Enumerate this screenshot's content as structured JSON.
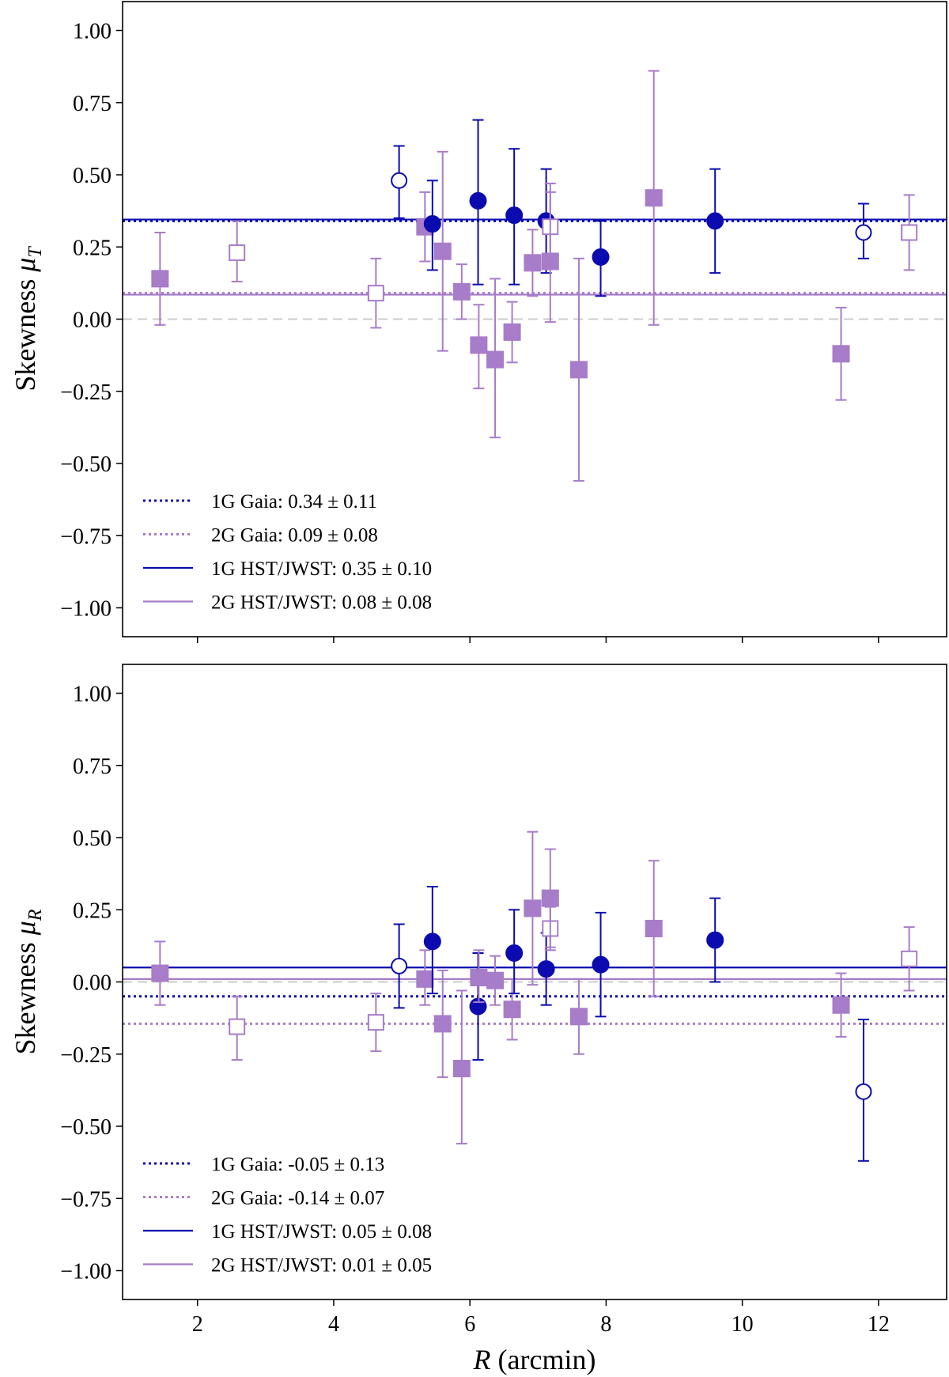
{
  "colors": {
    "g1": "#0b0bb0",
    "g2": "#a77cc8",
    "zero": "#cccccc"
  },
  "chart_data": [
    {
      "type": "scatter",
      "id": "top",
      "ylabel": "Skewness",
      "ylabel_symbol": "μ",
      "ylabel_sub": "T",
      "xlim": [
        0.9,
        13.0
      ],
      "ylim": [
        -1.1,
        1.1
      ],
      "yticks": [
        1.0,
        0.75,
        0.5,
        0.25,
        0.0,
        -0.25,
        -0.5,
        -0.75,
        -1.0
      ],
      "ytick_labels": [
        "1.00",
        "0.75",
        "0.50",
        "0.25",
        "0.00",
        "−0.25",
        "−0.50",
        "−0.75",
        "−1.00"
      ],
      "xticks": [
        2,
        4,
        6,
        8,
        10,
        12
      ],
      "xtick_labels": [],
      "hlines": [
        {
          "group": "g1",
          "style": "dotted",
          "y": 0.34
        },
        {
          "group": "g2",
          "style": "dotted",
          "y": 0.09
        },
        {
          "group": "g1",
          "style": "solid",
          "y": 0.345
        },
        {
          "group": "g2",
          "style": "solid",
          "y": 0.085
        }
      ],
      "legend": [
        {
          "group": "g1",
          "style": "dotted",
          "label": "1G Gaia: 0.34 ± 0.11"
        },
        {
          "group": "g2",
          "style": "dotted",
          "label": "2G Gaia: 0.09 ± 0.08"
        },
        {
          "group": "g1",
          "style": "solid",
          "label": "1G HST/JWST: 0.35 ± 0.10"
        },
        {
          "group": "g2",
          "style": "solid",
          "label": "2G HST/JWST: 0.08 ± 0.08"
        }
      ],
      "points": [
        {
          "group": "g2",
          "filled": true,
          "x": 1.45,
          "y": 0.14,
          "lo": -0.02,
          "hi": 0.3
        },
        {
          "group": "g2",
          "filled": false,
          "x": 2.58,
          "y": 0.23,
          "lo": 0.13,
          "hi": 0.34
        },
        {
          "group": "g2",
          "filled": false,
          "x": 4.62,
          "y": 0.09,
          "lo": -0.03,
          "hi": 0.21
        },
        {
          "group": "g1",
          "filled": false,
          "x": 4.96,
          "y": 0.48,
          "lo": 0.35,
          "hi": 0.6
        },
        {
          "group": "g2",
          "filled": true,
          "x": 5.34,
          "y": 0.32,
          "lo": 0.2,
          "hi": 0.44
        },
        {
          "group": "g1",
          "filled": true,
          "x": 5.45,
          "y": 0.33,
          "lo": 0.17,
          "hi": 0.48
        },
        {
          "group": "g2",
          "filled": true,
          "x": 5.6,
          "y": 0.235,
          "lo": -0.11,
          "hi": 0.58
        },
        {
          "group": "g2",
          "filled": true,
          "x": 5.88,
          "y": 0.095,
          "lo": 0.0,
          "hi": 0.19
        },
        {
          "group": "g1",
          "filled": true,
          "x": 6.12,
          "y": 0.41,
          "lo": 0.12,
          "hi": 0.69
        },
        {
          "group": "g2",
          "filled": true,
          "x": 6.13,
          "y": -0.09,
          "lo": -0.24,
          "hi": 0.05
        },
        {
          "group": "g2",
          "filled": true,
          "x": 6.37,
          "y": -0.14,
          "lo": -0.41,
          "hi": 0.14
        },
        {
          "group": "g2",
          "filled": true,
          "x": 6.62,
          "y": -0.045,
          "lo": -0.15,
          "hi": 0.06
        },
        {
          "group": "g1",
          "filled": true,
          "x": 6.65,
          "y": 0.36,
          "lo": 0.12,
          "hi": 0.59
        },
        {
          "group": "g2",
          "filled": true,
          "x": 6.92,
          "y": 0.195,
          "lo": 0.08,
          "hi": 0.31
        },
        {
          "group": "g1",
          "filled": true,
          "x": 7.12,
          "y": 0.34,
          "lo": 0.16,
          "hi": 0.52
        },
        {
          "group": "g2",
          "filled": false,
          "x": 7.18,
          "y": 0.32,
          "lo": 0.2,
          "hi": 0.44
        },
        {
          "group": "g2",
          "filled": true,
          "x": 7.18,
          "y": 0.2,
          "lo": -0.01,
          "hi": 0.47
        },
        {
          "group": "g2",
          "filled": true,
          "x": 7.6,
          "y": -0.175,
          "lo": -0.56,
          "hi": 0.21
        },
        {
          "group": "g1",
          "filled": true,
          "x": 7.92,
          "y": 0.215,
          "lo": 0.08,
          "hi": 0.34
        },
        {
          "group": "g2",
          "filled": true,
          "x": 8.7,
          "y": 0.42,
          "lo": -0.02,
          "hi": 0.86
        },
        {
          "group": "g1",
          "filled": true,
          "x": 9.6,
          "y": 0.34,
          "lo": 0.16,
          "hi": 0.52
        },
        {
          "group": "g2",
          "filled": true,
          "x": 11.45,
          "y": -0.12,
          "lo": -0.28,
          "hi": 0.04
        },
        {
          "group": "g1",
          "filled": false,
          "x": 11.78,
          "y": 0.3,
          "lo": 0.21,
          "hi": 0.4
        },
        {
          "group": "g2",
          "filled": false,
          "x": 12.45,
          "y": 0.3,
          "lo": 0.17,
          "hi": 0.43
        }
      ]
    },
    {
      "type": "scatter",
      "id": "bottom",
      "ylabel": "Skewness",
      "ylabel_symbol": "μ",
      "ylabel_sub": "R",
      "xlabel": "R",
      "xlabel_rest": " (arcmin)",
      "xlim": [
        0.9,
        13.0
      ],
      "ylim": [
        -1.1,
        1.1
      ],
      "yticks": [
        1.0,
        0.75,
        0.5,
        0.25,
        0.0,
        -0.25,
        -0.5,
        -0.75,
        -1.0
      ],
      "ytick_labels": [
        "1.00",
        "0.75",
        "0.50",
        "0.25",
        "0.00",
        "−0.25",
        "−0.50",
        "−0.75",
        "−1.00"
      ],
      "xticks": [
        2,
        4,
        6,
        8,
        10,
        12
      ],
      "xtick_labels": [
        "2",
        "4",
        "6",
        "8",
        "10",
        "12"
      ],
      "hlines": [
        {
          "group": "g1",
          "style": "dotted",
          "y": -0.05
        },
        {
          "group": "g2",
          "style": "dotted",
          "y": -0.145
        },
        {
          "group": "g1",
          "style": "solid",
          "y": 0.05
        },
        {
          "group": "g2",
          "style": "solid",
          "y": 0.01
        }
      ],
      "legend": [
        {
          "group": "g1",
          "style": "dotted",
          "label": "1G Gaia: -0.05 ± 0.13"
        },
        {
          "group": "g2",
          "style": "dotted",
          "label": "2G Gaia: -0.14 ± 0.07"
        },
        {
          "group": "g1",
          "style": "solid",
          "label": "1G HST/JWST: 0.05 ± 0.08"
        },
        {
          "group": "g2",
          "style": "solid",
          "label": "2G HST/JWST: 0.01 ± 0.05"
        }
      ],
      "points": [
        {
          "group": "g2",
          "filled": true,
          "x": 1.45,
          "y": 0.03,
          "lo": -0.08,
          "hi": 0.14
        },
        {
          "group": "g2",
          "filled": false,
          "x": 2.58,
          "y": -0.155,
          "lo": -0.27,
          "hi": -0.05
        },
        {
          "group": "g2",
          "filled": false,
          "x": 4.62,
          "y": -0.14,
          "lo": -0.24,
          "hi": -0.04
        },
        {
          "group": "g1",
          "filled": false,
          "x": 4.96,
          "y": 0.055,
          "lo": -0.09,
          "hi": 0.2
        },
        {
          "group": "g2",
          "filled": true,
          "x": 5.34,
          "y": 0.01,
          "lo": -0.08,
          "hi": 0.11
        },
        {
          "group": "g1",
          "filled": true,
          "x": 5.45,
          "y": 0.14,
          "lo": -0.04,
          "hi": 0.33
        },
        {
          "group": "g2",
          "filled": true,
          "x": 5.6,
          "y": -0.145,
          "lo": -0.33,
          "hi": 0.04
        },
        {
          "group": "g2",
          "filled": true,
          "x": 5.88,
          "y": -0.3,
          "lo": -0.56,
          "hi": -0.03
        },
        {
          "group": "g1",
          "filled": true,
          "x": 6.12,
          "y": -0.085,
          "lo": -0.27,
          "hi": 0.1
        },
        {
          "group": "g2",
          "filled": true,
          "x": 6.13,
          "y": 0.015,
          "lo": -0.07,
          "hi": 0.11
        },
        {
          "group": "g2",
          "filled": true,
          "x": 6.37,
          "y": 0.005,
          "lo": -0.08,
          "hi": 0.09
        },
        {
          "group": "g2",
          "filled": true,
          "x": 6.62,
          "y": -0.095,
          "lo": -0.2,
          "hi": 0.01
        },
        {
          "group": "g1",
          "filled": true,
          "x": 6.65,
          "y": 0.1,
          "lo": -0.04,
          "hi": 0.25
        },
        {
          "group": "g2",
          "filled": true,
          "x": 6.92,
          "y": 0.255,
          "lo": -0.01,
          "hi": 0.52
        },
        {
          "group": "g1",
          "filled": true,
          "x": 7.12,
          "y": 0.045,
          "lo": -0.08,
          "hi": 0.17
        },
        {
          "group": "g2",
          "filled": false,
          "x": 7.18,
          "y": 0.185,
          "lo": 0.11,
          "hi": 0.26
        },
        {
          "group": "g2",
          "filled": true,
          "x": 7.18,
          "y": 0.29,
          "lo": 0.12,
          "hi": 0.46
        },
        {
          "group": "g2",
          "filled": true,
          "x": 7.6,
          "y": -0.12,
          "lo": -0.25,
          "hi": 0.01
        },
        {
          "group": "g1",
          "filled": true,
          "x": 7.92,
          "y": 0.06,
          "lo": -0.12,
          "hi": 0.24
        },
        {
          "group": "g2",
          "filled": true,
          "x": 8.7,
          "y": 0.185,
          "lo": -0.05,
          "hi": 0.42
        },
        {
          "group": "g1",
          "filled": true,
          "x": 9.6,
          "y": 0.145,
          "lo": 0.0,
          "hi": 0.29
        },
        {
          "group": "g2",
          "filled": true,
          "x": 11.45,
          "y": -0.08,
          "lo": -0.19,
          "hi": 0.03
        },
        {
          "group": "g1",
          "filled": false,
          "x": 11.78,
          "y": -0.38,
          "lo": -0.62,
          "hi": -0.13
        },
        {
          "group": "g2",
          "filled": false,
          "x": 12.45,
          "y": 0.08,
          "lo": -0.03,
          "hi": 0.19
        }
      ]
    }
  ]
}
